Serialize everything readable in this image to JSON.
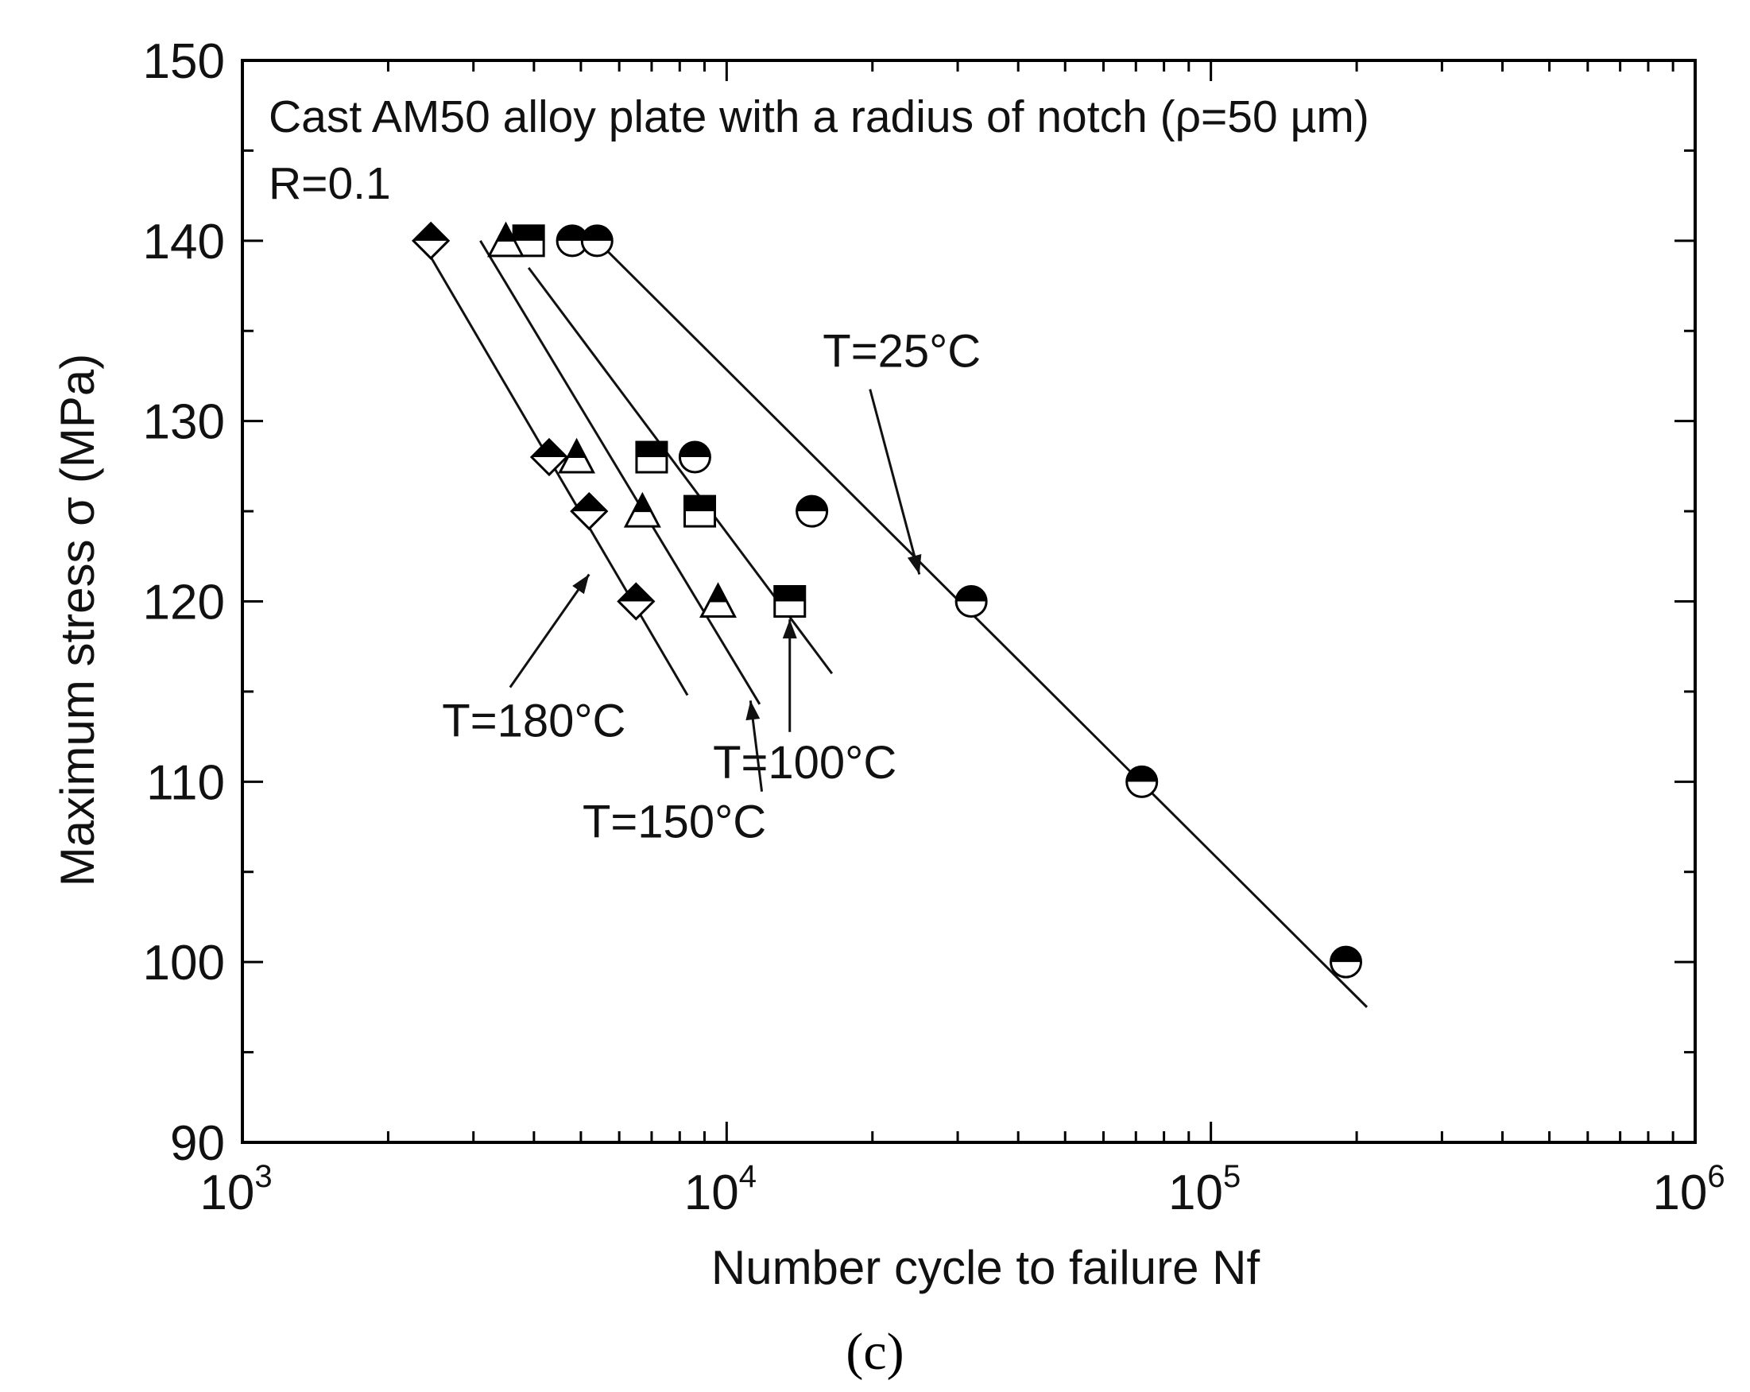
{
  "chart_data": {
    "type": "scatter",
    "x_scale": "log",
    "xlim": [
      1000,
      1000000
    ],
    "ylim": [
      90,
      150
    ],
    "xlabel": "Number cycle to failure Nf",
    "ylabel": "Maximum stress σ (MPa)",
    "x_ticks": [
      {
        "base": "10",
        "exp": "3",
        "value": 1000
      },
      {
        "base": "10",
        "exp": "4",
        "value": 10000
      },
      {
        "base": "10",
        "exp": "5",
        "value": 100000
      },
      {
        "base": "10",
        "exp": "6",
        "value": 1000000
      }
    ],
    "y_ticks": [
      "90",
      "100",
      "110",
      "120",
      "130",
      "140",
      "150"
    ],
    "annotation_title": "Cast AM50 alloy plate with a radius of notch (ρ=50 µm)",
    "annotation_ratio": "R=0.1",
    "panel_label": "(c)",
    "series": [
      {
        "name": "T=25°C",
        "marker": "circle",
        "points": [
          [
            4800,
            140
          ],
          [
            5400,
            140
          ],
          [
            8600,
            128
          ],
          [
            15000,
            125
          ],
          [
            32000,
            120
          ],
          [
            72000,
            110
          ],
          [
            190000,
            100
          ]
        ],
        "fit": [
          [
            5400,
            140
          ],
          [
            210000,
            97.5
          ]
        ],
        "label_value": [
          23000,
          133
        ],
        "arrow_to": [
          25000,
          121.5
        ]
      },
      {
        "name": "T=100°C",
        "marker": "square",
        "points": [
          [
            3900,
            140
          ],
          [
            7000,
            128
          ],
          [
            8800,
            125
          ],
          [
            13500,
            120
          ]
        ],
        "fit": [
          [
            3900,
            138.5
          ],
          [
            16500,
            116
          ]
        ],
        "label_value": [
          14500,
          110.2
        ],
        "arrow_to": [
          13500,
          119
        ]
      },
      {
        "name": "T=150°C",
        "marker": "triangle",
        "points": [
          [
            3500,
            140
          ],
          [
            4900,
            128
          ],
          [
            6700,
            125
          ],
          [
            9600,
            120
          ]
        ],
        "fit": [
          [
            3100,
            140
          ],
          [
            11700,
            114.3
          ]
        ],
        "label_value": [
          7800,
          106.9
        ],
        "arrow_to": [
          11200,
          114.5
        ]
      },
      {
        "name": "T=180°C",
        "marker": "diamond",
        "points": [
          [
            2450,
            140
          ],
          [
            4300,
            128
          ],
          [
            5200,
            125
          ],
          [
            6500,
            120
          ]
        ],
        "fit": [
          [
            2400,
            139.5
          ],
          [
            8300,
            114.8
          ]
        ],
        "label_value": [
          4000,
          112.5
        ],
        "arrow_to": [
          5200,
          121.5
        ]
      }
    ]
  }
}
